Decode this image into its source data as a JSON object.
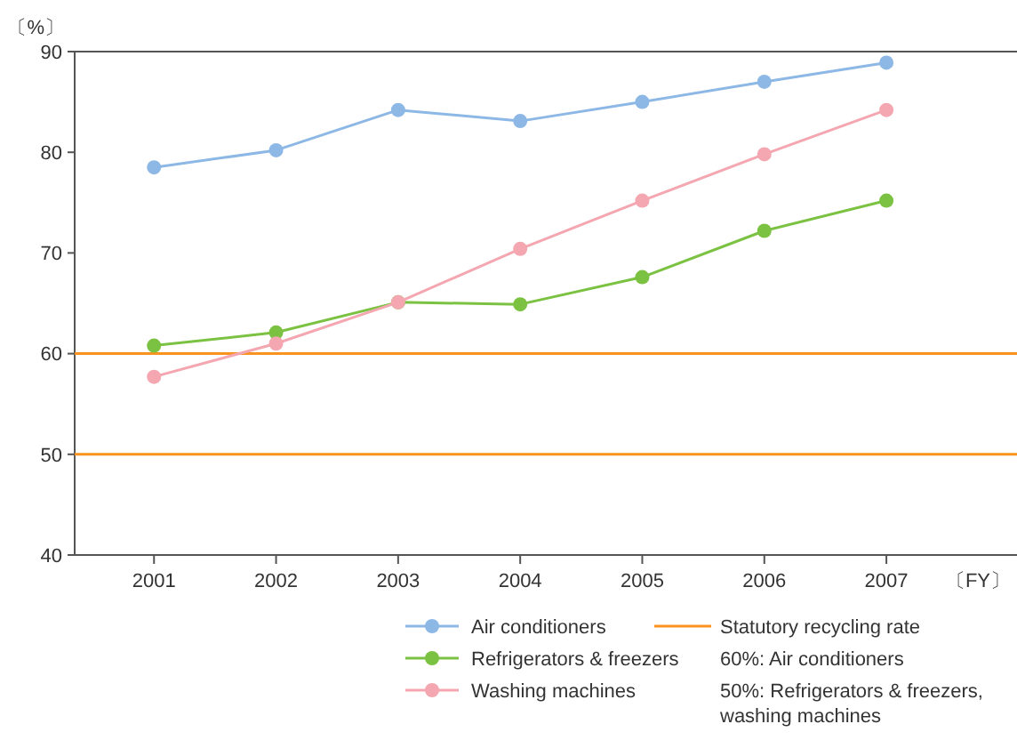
{
  "chart_data": {
    "type": "line",
    "ylabel": "〔%〕",
    "xlabel": "〔FY〕",
    "x": [
      2001,
      2002,
      2003,
      2004,
      2005,
      2006,
      2007
    ],
    "xlim": [
      2000.35,
      2008.07
    ],
    "xticks": [
      2001,
      2002,
      2003,
      2004,
      2005,
      2006,
      2007
    ],
    "ylim": [
      40,
      90
    ],
    "yticks": [
      40,
      50,
      60,
      70,
      80,
      90
    ],
    "series": [
      {
        "name": "Air conditioners",
        "color": "#8db8e6",
        "values": [
          78.5,
          80.2,
          84.2,
          83.1,
          85.0,
          87.0,
          88.9
        ]
      },
      {
        "name": "Refrigerators & freezers",
        "color": "#7cc242",
        "values": [
          60.8,
          62.1,
          65.1,
          64.9,
          67.6,
          72.2,
          75.2
        ]
      },
      {
        "name": "Washing machines",
        "color": "#f4a7b0",
        "values": [
          57.7,
          61.0,
          65.1,
          70.4,
          75.2,
          79.8,
          84.2
        ]
      }
    ],
    "ref_lines": [
      {
        "axis": "y",
        "value": 60,
        "color": "#f7931e"
      },
      {
        "axis": "y",
        "value": 50,
        "color": "#f7931e"
      }
    ],
    "annotations": [
      "Statutory recycling rate",
      "60%: Air conditioners",
      "50%: Refrigerators & freezers, washing machines"
    ],
    "marker": "circle",
    "line_style": "solid",
    "grid": false,
    "legend": "bottom right"
  }
}
